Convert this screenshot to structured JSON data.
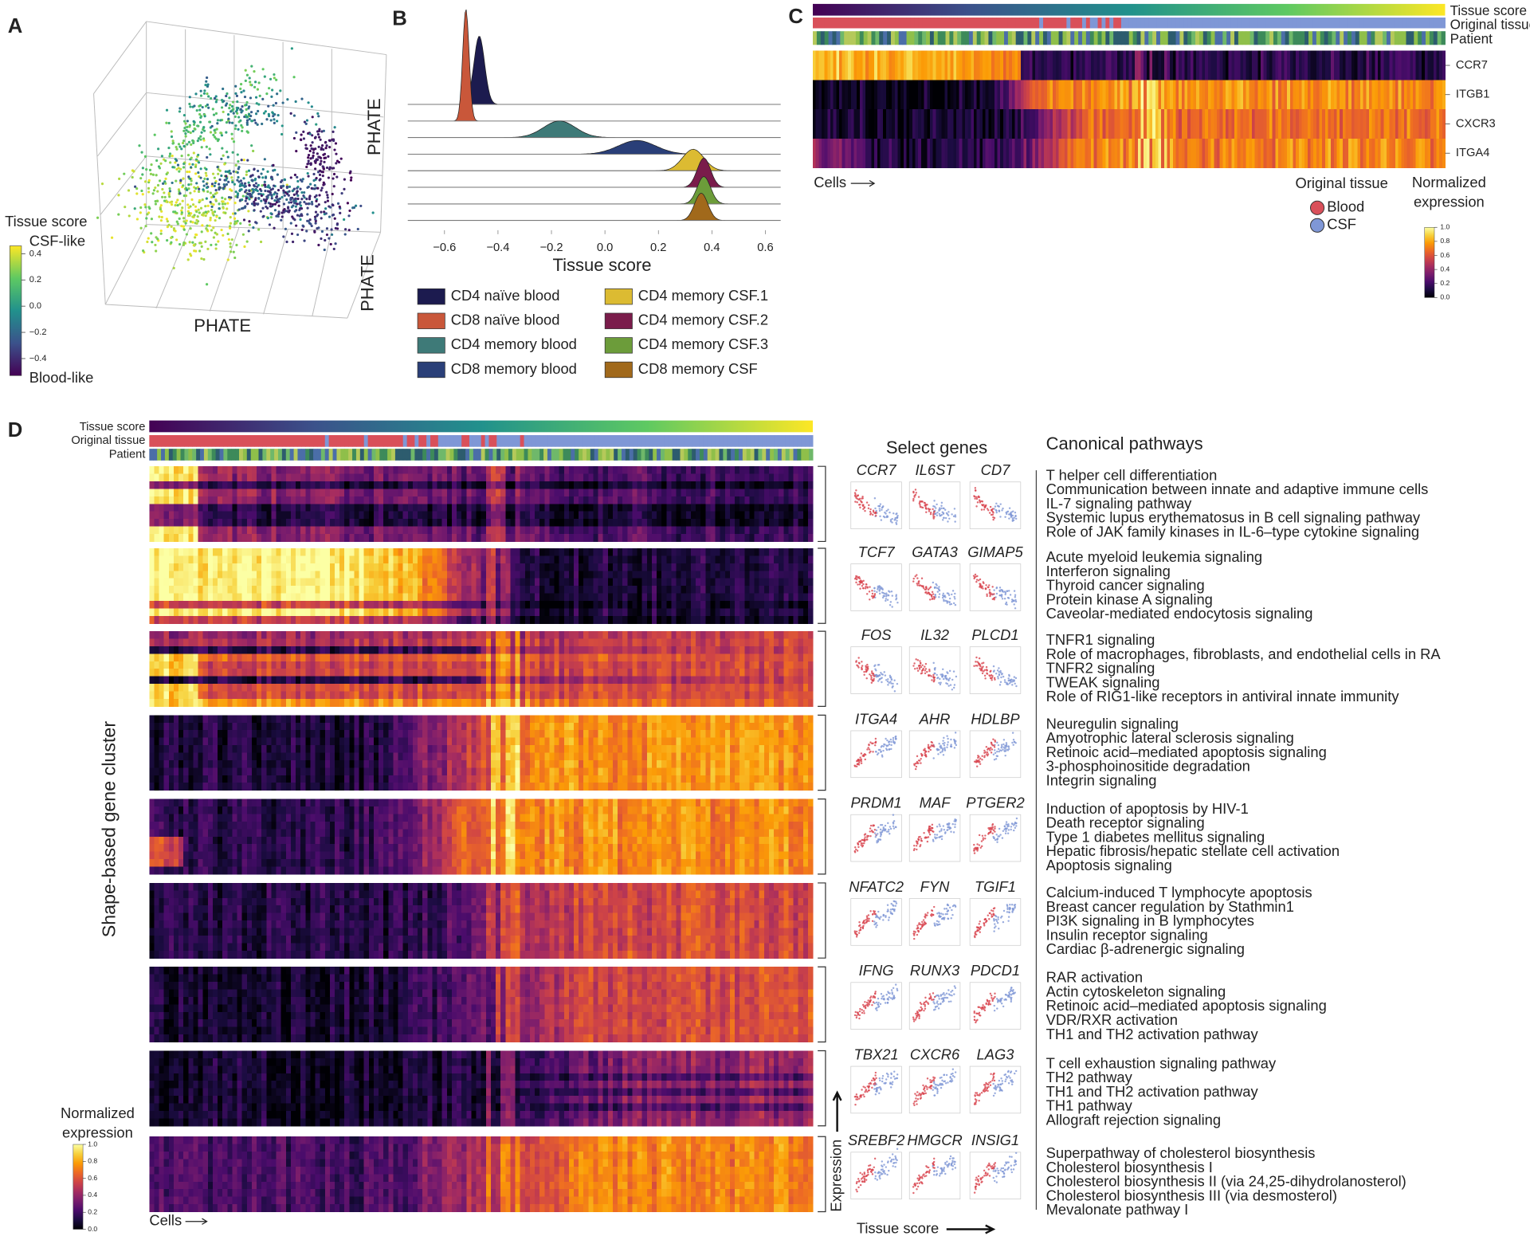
{
  "panel_a": {
    "label": "A",
    "axis_labels": [
      "PHATE",
      "PHATE",
      "PHATE"
    ],
    "colorbar": {
      "title": "Tissue score",
      "top": "CSF-like",
      "bottom": "Blood-like",
      "lim": [
        -0.53,
        0.46
      ],
      "ticks": [
        0.4,
        0.2,
        {
          "value": 0,
          "label": "0.0"
        },
        {
          "value": -0.2,
          "label": "−0.2"
        },
        {
          "value": -0.4,
          "label": "−0.4"
        }
      ]
    }
  },
  "panel_b": {
    "label": "B",
    "xlabel": "Tissue score",
    "xlim": [
      -0.737,
      0.657
    ],
    "xticks": [
      {
        "value": -0.6,
        "label": "−0.6"
      },
      {
        "value": -0.4,
        "label": "−0.4"
      },
      {
        "value": -0.2,
        "label": "−0.2"
      },
      {
        "value": 0,
        "label": "0.0"
      },
      0.2,
      0.4,
      0.6
    ],
    "series": [
      {
        "name": "CD4 naïve blood",
        "color": "#1c1b4f",
        "peak": -0.47,
        "spread": 0.02,
        "height": 70
      },
      {
        "name": "CD8 naïve blood",
        "color": "#c9573a",
        "peak": -0.52,
        "spread": 0.012,
        "height": 115
      },
      {
        "name": "CD4 memory blood",
        "color": "#3e7a78",
        "peak": -0.17,
        "spread": 0.06,
        "height": 17
      },
      {
        "name": "CD8 memory blood",
        "color": "#2a3f78",
        "peak": 0.12,
        "spread": 0.07,
        "height": 14
      },
      {
        "name": "CD4 memory CSF.1",
        "color": "#dcbb32",
        "peak": 0.33,
        "spread": 0.04,
        "height": 22
      },
      {
        "name": "CD4 memory CSF.2",
        "color": "#7a1c4b",
        "peak": 0.37,
        "spread": 0.025,
        "height": 30
      },
      {
        "name": "CD4 memory CSF.3",
        "color": "#6c9c3a",
        "peak": 0.37,
        "spread": 0.025,
        "height": 28
      },
      {
        "name": "CD8 memory CSF",
        "color": "#a1691b",
        "peak": 0.36,
        "spread": 0.025,
        "height": 28
      }
    ]
  },
  "panel_c": {
    "label": "C",
    "track_labels": [
      "Tissue score",
      "Original tissue",
      "Patient"
    ],
    "genes": [
      "CCR7",
      "ITGB1",
      "CXCR3",
      "ITGA4"
    ],
    "cells_label": "Cells",
    "legend_title": "Original tissue",
    "legend": [
      {
        "name": "Blood",
        "color": "#d9505a"
      },
      {
        "name": "CSF",
        "color": "#7f97d6"
      }
    ],
    "colorbar": {
      "title_lines": [
        "Normalized",
        "expression"
      ],
      "lim": [
        0,
        1
      ],
      "ticks": [
        {
          "value": 1,
          "label": "1.0"
        },
        0.8,
        0.6,
        0.4,
        0.2,
        {
          "value": 0,
          "label": "0.0"
        }
      ]
    }
  },
  "panel_d": {
    "label": "D",
    "track_labels": [
      "Tissue score",
      "Original tissue",
      "Patient"
    ],
    "ylabel": "Shape-based gene cluster",
    "cells_label": "Cells",
    "colorbar": {
      "title_lines": [
        "Normalized",
        "expression"
      ],
      "lim": [
        0,
        1
      ],
      "ticks": [
        {
          "value": 1,
          "label": "1.0"
        },
        0.8,
        0.6,
        0.4,
        0.2,
        {
          "value": 0,
          "label": "0.0"
        }
      ]
    },
    "genes_title": "Select genes",
    "pathways_title": "Canonical pathways",
    "x_axis_label": "Tissue score",
    "y_axis_label": "Expression",
    "clusters": [
      {
        "genes": [
          "CCR7",
          "IL6ST",
          "CD7"
        ],
        "pathways": [
          "T helper cell differentiation",
          "Communication between innate and adaptive immune cells",
          "IL-7 signaling pathway",
          "Systemic lupus erythematosus in B cell signaling pathway",
          "Role of JAK family kinases in IL-6–type cytokine signaling"
        ]
      },
      {
        "genes": [
          "TCF7",
          "GATA3",
          "GIMAP5"
        ],
        "pathways": [
          "Acute myeloid leukemia signaling",
          "Interferon signaling",
          "Thyroid cancer signaling",
          "Protein kinase A signaling",
          "Caveolar-mediated endocytosis signaling"
        ]
      },
      {
        "genes": [
          "FOS",
          "IL32",
          "PLCD1"
        ],
        "pathways": [
          "TNFR1 signaling",
          "Role of macrophages, fibroblasts, and endothelial cells in RA",
          "TNFR2 signaling",
          "TWEAK signaling",
          "Role of RIG1-like receptors in antiviral innate immunity"
        ]
      },
      {
        "genes": [
          "ITGA4",
          "AHR",
          "HDLBP"
        ],
        "pathways": [
          "Neuregulin signaling",
          "Amyotrophic lateral sclerosis signaling",
          "Retinoic acid–mediated apoptosis signaling",
          "3-phosphoinositide degradation",
          "Integrin signaling"
        ]
      },
      {
        "genes": [
          "PRDM1",
          "MAF",
          "PTGER2"
        ],
        "pathways": [
          "Induction of apoptosis by HIV-1",
          "Death receptor signaling",
          "Type 1 diabetes mellitus signaling",
          "Hepatic fibrosis/hepatic stellate cell activation",
          "Apoptosis signaling"
        ]
      },
      {
        "genes": [
          "NFATC2",
          "FYN",
          "TGIF1"
        ],
        "pathways": [
          "Calcium-induced T lymphocyte apoptosis",
          "Breast cancer regulation by Stathmin1",
          "PI3K signaling in B lymphocytes",
          "Insulin receptor signaling",
          "Cardiac β-adrenergic signaling"
        ]
      },
      {
        "genes": [
          "IFNG",
          "RUNX3",
          "PDCD1"
        ],
        "pathways": [
          "RAR activation",
          "Actin cytoskeleton signaling",
          "Retinoic acid–mediated apoptosis signaling",
          "VDR/RXR activation",
          "TH1 and TH2 activation pathway"
        ]
      },
      {
        "genes": [
          "TBX21",
          "CXCR6",
          "LAG3"
        ],
        "pathways": [
          "T cell exhaustion signaling pathway",
          "TH2 pathway",
          "TH1 and TH2 activation pathway",
          "TH1 pathway",
          "Allograft rejection signaling"
        ]
      },
      {
        "genes": [
          "SREBF2",
          "HMGCR",
          "INSIG1"
        ],
        "pathways": [
          "Superpathway of cholesterol biosynthesis",
          "Cholesterol biosynthesis I",
          "Cholesterol biosynthesis II (via 24,25-dihydrolanosterol)",
          "Cholesterol biosynthesis III (via desmosterol)",
          "Mevalonate pathway I"
        ]
      }
    ]
  }
}
